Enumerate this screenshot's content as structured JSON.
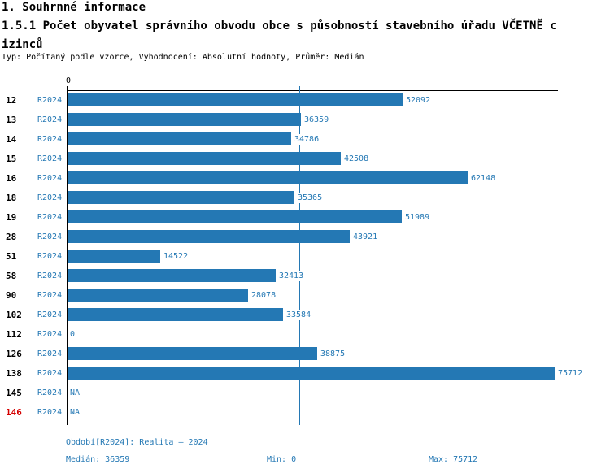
{
  "header": {
    "title_line1": "1. Souhrnné informace",
    "title_line2": "1.5.1 Počet obyvatel správního obvodu obce s působností stavebního úřadu VČETNĚ c",
    "title_line3": "izinců",
    "meta": "Typ: Počítaný podle vzorce, Vyhodnocení: Absolutní hodnoty, Průměr: Medián"
  },
  "chart_data": {
    "type": "bar",
    "orientation": "horizontal",
    "title": "",
    "xlabel": "",
    "ylabel": "",
    "xlim": [
      0,
      75712
    ],
    "x_zero_tick_label": "0",
    "grid": false,
    "series_label": "R2024",
    "categories": [
      "12",
      "13",
      "14",
      "15",
      "16",
      "18",
      "19",
      "28",
      "51",
      "58",
      "90",
      "102",
      "112",
      "126",
      "138",
      "145",
      "146"
    ],
    "values": [
      52092,
      36359,
      34786,
      42508,
      62148,
      35365,
      51989,
      43921,
      14522,
      32413,
      28078,
      33584,
      0,
      38875,
      75712,
      null,
      null
    ],
    "value_labels": [
      "52092",
      "36359",
      "34786",
      "42508",
      "62148",
      "35365",
      "51989",
      "43921",
      "14522",
      "32413",
      "28078",
      "33584",
      "0",
      "38875",
      "75712",
      "NA",
      "NA"
    ],
    "median_value": 36359,
    "median_line_shown": true,
    "bar_color": "#2478b4",
    "label_color": "#2478b4",
    "category_label_color": "#000000",
    "highlight_category": "146",
    "highlight_color": "#d40000"
  },
  "footer": {
    "period": "Období[R2024]: Realita – 2024",
    "median": "Medián: 36359",
    "min": "Min: 0",
    "max": "Max: 75712"
  }
}
